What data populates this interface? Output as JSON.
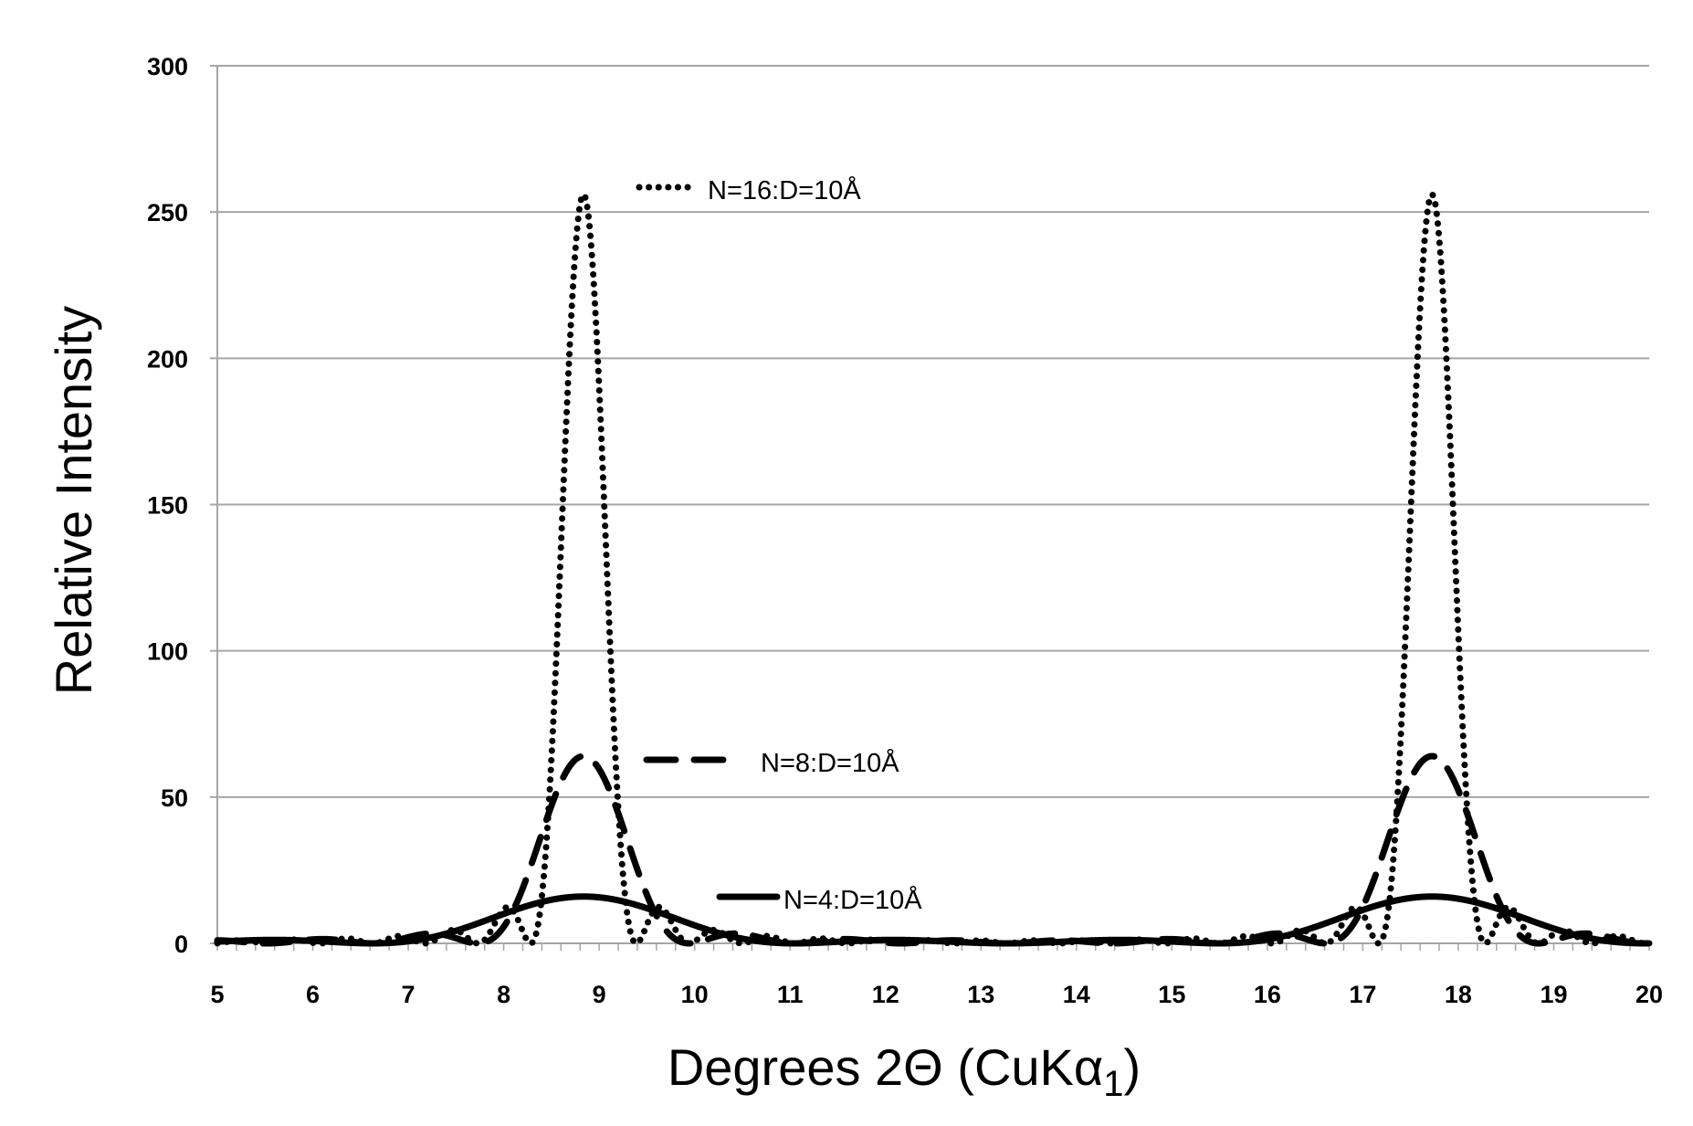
{
  "chart_data": {
    "type": "line",
    "title": "",
    "xlabel": "Degrees 2Θ (CuKα",
    "xlabel_subscript": "1",
    "xlabel_suffix": ")",
    "ylabel": "Relative Intensity",
    "xlim": [
      5,
      20
    ],
    "ylim": [
      0,
      300
    ],
    "xticks": [
      5,
      6,
      7,
      8,
      9,
      10,
      11,
      12,
      13,
      14,
      15,
      16,
      17,
      18,
      19,
      20
    ],
    "yticks": [
      0,
      50,
      100,
      150,
      200,
      250,
      300
    ],
    "grid": "horizontal",
    "legend_placement": "inline labels",
    "peak_centers": [
      8.84,
      17.7
    ],
    "series": [
      {
        "name": "N=16:D=10Å",
        "style": "dotted",
        "N": 16,
        "peak_max": 256,
        "color": "#000000"
      },
      {
        "name": "N=8:D=10Å",
        "style": "dashed",
        "N": 8,
        "peak_max": 64,
        "color": "#000000"
      },
      {
        "name": "N=4:D=10Å",
        "style": "solid",
        "N": 4,
        "peak_max": 16,
        "color": "#000000"
      }
    ],
    "grid_color": "#a6a6a6"
  }
}
